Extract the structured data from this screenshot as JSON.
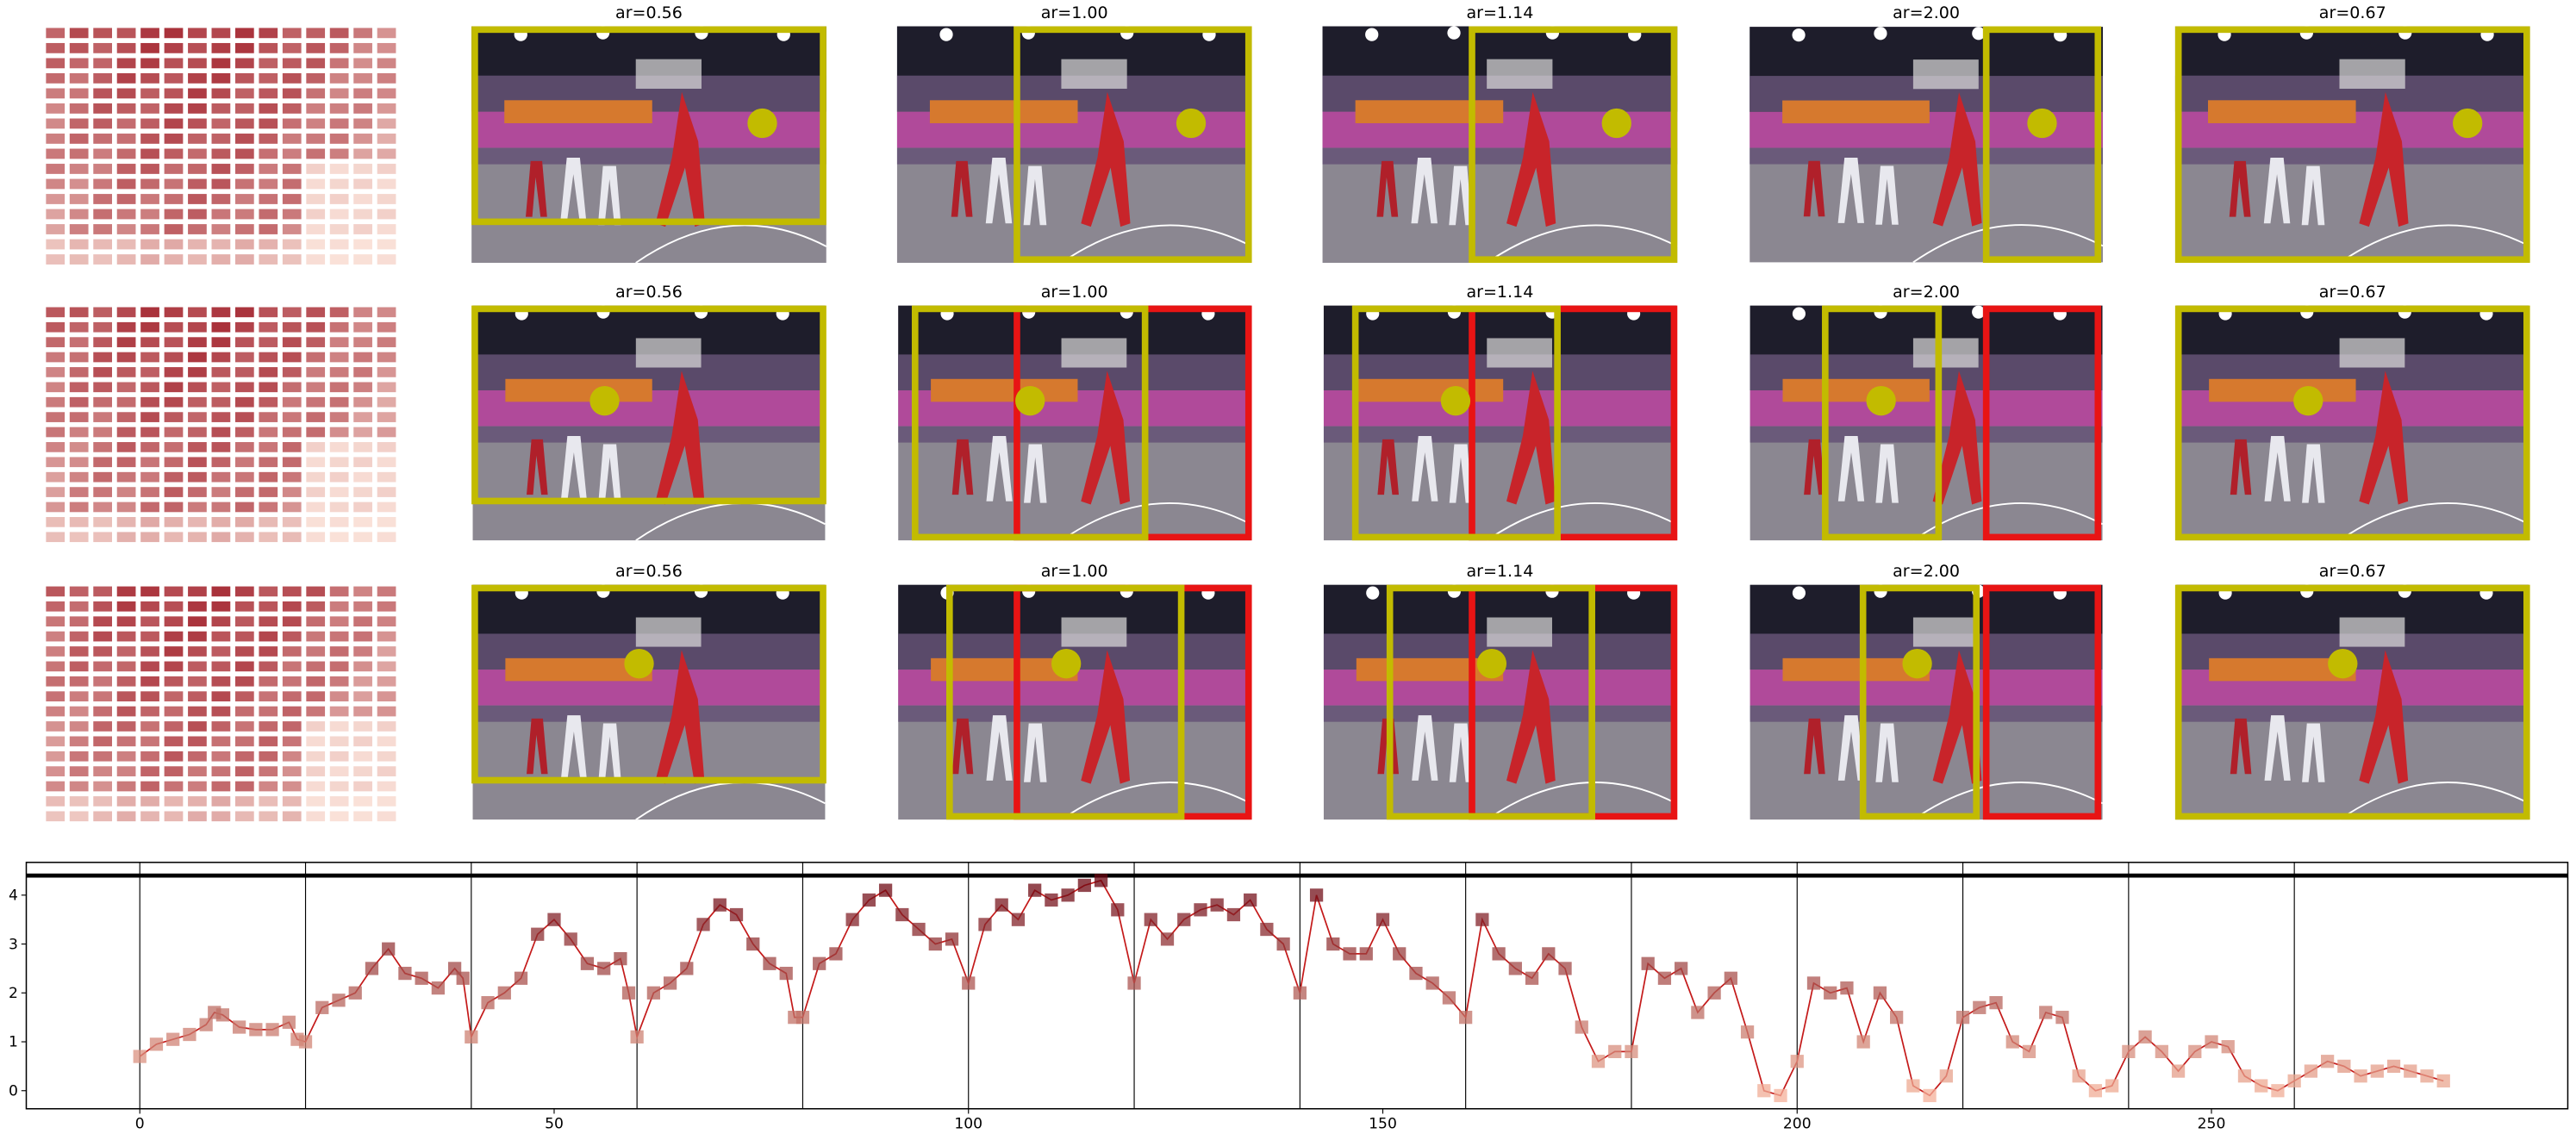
{
  "panel_titles": [
    "ar=0.56",
    "ar=1.00",
    "ar=1.14",
    "ar=2.00",
    "ar=0.67"
  ],
  "chart_data": {
    "type": "line",
    "x": [
      0,
      2,
      4,
      6,
      8,
      9,
      10,
      12,
      14,
      16,
      18,
      19,
      20,
      22,
      24,
      26,
      28,
      30,
      32,
      34,
      36,
      38,
      39,
      40,
      42,
      44,
      46,
      48,
      50,
      52,
      54,
      56,
      58,
      59,
      60,
      62,
      64,
      66,
      68,
      70,
      72,
      74,
      76,
      78,
      79,
      80,
      82,
      84,
      86,
      88,
      90,
      92,
      94,
      96,
      98,
      100,
      102,
      104,
      106,
      108,
      110,
      112,
      114,
      116,
      118,
      120,
      122,
      124,
      126,
      128,
      130,
      132,
      134,
      136,
      138,
      140,
      142,
      144,
      146,
      148,
      150,
      152,
      154,
      156,
      158,
      160,
      162,
      164,
      166,
      168,
      170,
      172,
      174,
      176,
      178,
      180,
      182,
      184,
      186,
      188,
      190,
      192,
      194,
      196,
      198,
      200,
      202,
      204,
      206,
      208,
      210,
      212,
      214,
      216,
      218,
      220,
      222,
      224,
      226,
      228,
      230,
      232,
      234,
      236,
      238,
      240,
      242,
      244,
      246,
      248,
      250,
      252,
      254,
      256,
      258,
      260,
      262,
      264,
      266,
      268,
      270,
      272,
      274,
      276,
      278
    ],
    "series": [
      {
        "color": "#c41a1a",
        "values": [
          0.7,
          0.95,
          1.05,
          1.15,
          1.35,
          1.6,
          1.55,
          1.3,
          1.25,
          1.25,
          1.4,
          1.05,
          1.0,
          1.7,
          1.85,
          2.0,
          2.5,
          2.9,
          2.4,
          2.3,
          2.1,
          2.5,
          2.3,
          1.1,
          1.8,
          2.0,
          2.3,
          3.2,
          3.5,
          3.1,
          2.6,
          2.5,
          2.7,
          2.0,
          1.1,
          2.0,
          2.2,
          2.5,
          3.4,
          3.8,
          3.6,
          3.0,
          2.6,
          2.4,
          1.5,
          1.5,
          2.6,
          2.8,
          3.5,
          3.9,
          4.1,
          3.6,
          3.3,
          3.0,
          3.1,
          2.2,
          3.4,
          3.8,
          3.5,
          4.1,
          3.9,
          4.0,
          4.2,
          4.3,
          3.7,
          2.2,
          3.5,
          3.1,
          3.5,
          3.7,
          3.8,
          3.6,
          3.9,
          3.3,
          3.0,
          2.0,
          4.0,
          3.0,
          2.8,
          2.8,
          3.5,
          2.8,
          2.4,
          2.2,
          1.9,
          1.5,
          3.5,
          2.8,
          2.5,
          2.3,
          2.8,
          2.5,
          1.3,
          0.6,
          0.8,
          0.8,
          2.6,
          2.3,
          2.5,
          1.6,
          2.0,
          2.3,
          1.2,
          0.0,
          -0.1,
          0.6,
          2.2,
          2.0,
          2.1,
          1.0,
          2.0,
          1.5,
          0.1,
          -0.1,
          0.3,
          1.5,
          1.7,
          1.8,
          1.0,
          0.8,
          1.6,
          1.5,
          0.3,
          0.0,
          0.1,
          0.8,
          1.1,
          0.8,
          0.4,
          0.8,
          1.0,
          0.9,
          0.3,
          0.1,
          0.0,
          0.2,
          0.4,
          0.6,
          0.5,
          0.3,
          0.4,
          0.5,
          0.4,
          0.3,
          0.2
        ]
      }
    ],
    "marker_colormap": [
      "#fcbba1",
      "#67000d"
    ],
    "xlim": [
      -13.7,
      293
    ],
    "ylim": [
      -0.37,
      4.67
    ],
    "xticks": [
      0,
      50,
      100,
      150,
      200,
      250
    ],
    "yticks": [
      0,
      1,
      2,
      3,
      4
    ],
    "vlines": [
      0,
      20,
      40,
      60,
      80,
      100,
      120,
      140,
      160,
      180,
      200,
      220,
      240,
      260
    ],
    "hline": 4.4
  }
}
